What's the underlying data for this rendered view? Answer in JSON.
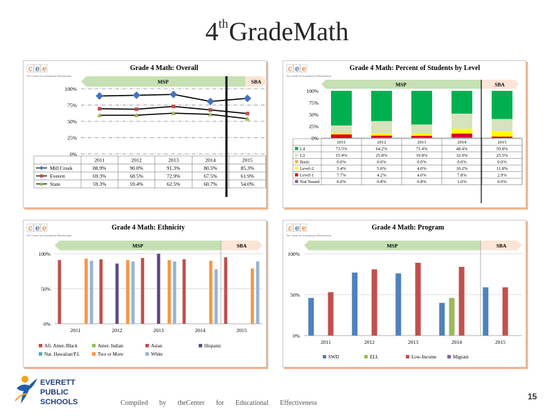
{
  "slide": {
    "title_number": "4",
    "title_suffix": "th",
    "title_rest": "GradeMath",
    "logo_text": [
      "EVERETT",
      "PUBLIC",
      "SCHOOLS"
    ],
    "footer": "Compiled by theCenter for Educational Effectiveness",
    "page_number": "15",
    "cee_logo_letters": [
      "c",
      "e",
      "e"
    ],
    "cee_tagline": "The Center for Educational Effectiveness",
    "colors": {
      "msp_arrow": "#c6e0b4",
      "sba_arrow": "#fbe5d6",
      "accent_orange": "#f4b183"
    }
  },
  "chart_data": [
    {
      "id": "overall",
      "type": "line",
      "title": "Grade 4 Math: Overall",
      "phase_labels": {
        "msp": "MSP",
        "sba": "SBA"
      },
      "categories": [
        "2011",
        "2012",
        "2013",
        "2014",
        "2015"
      ],
      "y_ticks": [
        "0%",
        "25%",
        "50%",
        "75%",
        "100%"
      ],
      "ylim": [
        0,
        100
      ],
      "series": [
        {
          "name": "Mill Creek",
          "color": "#4472c4",
          "marker": "diamond",
          "values": [
            88.9,
            90.0,
            91.3,
            80.5,
            85.3
          ],
          "labels": [
            "88.9%",
            "90.0%",
            "91.3%",
            "80.5%",
            "85.3%"
          ]
        },
        {
          "name": "Everett",
          "color": "#c0504d",
          "marker": "square",
          "values": [
            69.3,
            68.5,
            72.9,
            67.5,
            61.9
          ],
          "labels": [
            "69.3%",
            "68.5%",
            "72.9%",
            "67.5%",
            "61.9%"
          ]
        },
        {
          "name": "State",
          "color": "#9bbb59",
          "marker": "triangle",
          "values": [
            59.3,
            59.4,
            62.5,
            60.7,
            54.0
          ],
          "labels": [
            "59.3%",
            "59.4%",
            "62.5%",
            "60.7%",
            "54.0%"
          ]
        }
      ]
    },
    {
      "id": "levels",
      "type": "bar",
      "stacked": true,
      "title": "Grade 4 Math: Percent of Students by Level",
      "phase_labels": {
        "msp": "MSP",
        "sba": "SBA"
      },
      "categories": [
        "2011",
        "2012",
        "2013",
        "2014",
        "2015"
      ],
      "y_ticks": [
        "0%",
        "25%",
        "50%",
        "75%",
        "100%"
      ],
      "ylim": [
        0,
        100
      ],
      "series": [
        {
          "name": "Not Tested",
          "color": "#8064a2",
          "values": [
            0.0,
            0.8,
            0.8,
            1.6,
            0.0
          ],
          "labels": [
            "0.0%",
            "0.8%",
            "0.8%",
            "1.6%",
            "0.0%"
          ]
        },
        {
          "name": "Level-1",
          "color": "#e0001b",
          "values": [
            7.7,
            4.2,
            4.0,
            7.8,
            2.9
          ],
          "labels": [
            "7.7%",
            "4.2%",
            "4.0%",
            "7.8%",
            "2.9%"
          ]
        },
        {
          "name": "Level-2",
          "color": "#ffff00",
          "values": [
            3.4,
            5.0,
            4.0,
            10.2,
            11.8
          ],
          "labels": [
            "3.4%",
            "5.0%",
            "4.0%",
            "10.2%",
            "11.8%"
          ]
        },
        {
          "name": "Basic",
          "color": "#e3b53c",
          "values": [
            0.0,
            0.0,
            0.0,
            0.0,
            0.0
          ],
          "labels": [
            "0.0%",
            "0.0%",
            "0.0%",
            "0.0%",
            "0.0%"
          ]
        },
        {
          "name": "L3",
          "color": "#d6e3bc",
          "values": [
            15.4,
            25.8,
            19.8,
            32.0,
            25.5
          ],
          "labels": [
            "15.4%",
            "25.8%",
            "19.8%",
            "32.0%",
            "25.5%"
          ]
        },
        {
          "name": "L4",
          "color": "#00b050",
          "values": [
            73.5,
            64.2,
            71.4,
            48.4,
            59.8
          ],
          "labels": [
            "73.5%",
            "64.2%",
            "71.4%",
            "48.4%",
            "59.8%"
          ]
        }
      ],
      "table_order": [
        "L4",
        "L3",
        "Basic",
        "Level-2",
        "Level-1",
        "Not Tested"
      ]
    },
    {
      "id": "ethnicity",
      "type": "bar",
      "title": "Grade 4 Math: Ethnicity",
      "phase_labels": {
        "msp": "MSP",
        "sba": "SBA"
      },
      "categories": [
        "2011",
        "2012",
        "2013",
        "2014",
        "2015"
      ],
      "y_ticks": [
        "0%",
        "50%",
        "100%"
      ],
      "ylim": [
        0,
        100
      ],
      "series": [
        {
          "name": "Afr. Amer./Black",
          "color": "#c0504d",
          "values": [
            91,
            92,
            94,
            92,
            95
          ]
        },
        {
          "name": "Amer. Indian",
          "color": "#9bbb59",
          "values": [
            null,
            null,
            null,
            null,
            null
          ]
        },
        {
          "name": "Asian",
          "color": "#c0504d",
          "values": [
            null,
            null,
            null,
            null,
            null
          ]
        },
        {
          "name": "Hispanic",
          "color": "#604a7b",
          "values": [
            null,
            86,
            100,
            null,
            null
          ]
        },
        {
          "name": "Nat. Hawaiian/P.I.",
          "color": "#4bacc6",
          "values": [
            null,
            null,
            null,
            null,
            null
          ]
        },
        {
          "name": "Two or More",
          "color": "#f79646",
          "values": [
            93,
            91,
            91,
            90,
            79
          ]
        },
        {
          "name": "White",
          "color": "#95b3d7",
          "values": [
            90,
            89,
            89,
            78,
            89
          ]
        }
      ]
    },
    {
      "id": "program",
      "type": "bar",
      "title": "Grade 4 Math: Program",
      "phase_labels": {
        "msp": "MSP",
        "sba": "SBA"
      },
      "categories": [
        "2011",
        "2012",
        "2013",
        "2014",
        "2015"
      ],
      "y_ticks": [
        "0%",
        "50%",
        "100%"
      ],
      "ylim": [
        0,
        100
      ],
      "series": [
        {
          "name": "SWD",
          "color": "#4f81bd",
          "values": [
            46,
            77,
            76,
            40,
            59
          ]
        },
        {
          "name": "ELL",
          "color": "#9bbb59",
          "values": [
            null,
            null,
            null,
            46,
            null
          ]
        },
        {
          "name": "Low-Income",
          "color": "#c0504d",
          "values": [
            53,
            81,
            89,
            84,
            59
          ]
        },
        {
          "name": "Migrant",
          "color": "#8064a2",
          "values": [
            null,
            null,
            null,
            null,
            null
          ]
        }
      ]
    }
  ]
}
